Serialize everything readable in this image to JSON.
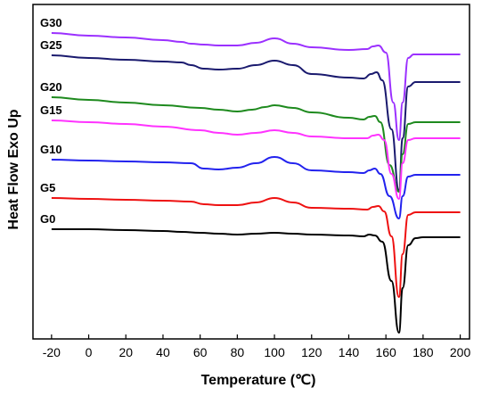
{
  "chart_data": {
    "type": "line",
    "xlabel": "Temperature (℃)",
    "ylabel": "Heat Flow Exo Up",
    "xlim": [
      -30,
      205
    ],
    "xticks": [
      -20,
      0,
      20,
      40,
      60,
      80,
      100,
      120,
      140,
      160,
      180,
      200
    ],
    "yticks_shown": false,
    "grid": false,
    "colors": {
      "G30": "#9b30ff",
      "G25": "#1a1a6e",
      "G20": "#1e8a1e",
      "G15": "#ff33ff",
      "G10": "#2222ee",
      "G5": "#ee1111",
      "G0": "#000000"
    },
    "series": [
      {
        "name": "G30",
        "color": "#9b30ff",
        "points": [
          [
            -20,
            32
          ],
          [
            0,
            35
          ],
          [
            20,
            37
          ],
          [
            40,
            40
          ],
          [
            50,
            42
          ],
          [
            55,
            44
          ],
          [
            62,
            45
          ],
          [
            70,
            46
          ],
          [
            80,
            46
          ],
          [
            90,
            43
          ],
          [
            100,
            38
          ],
          [
            110,
            44
          ],
          [
            120,
            48
          ],
          [
            140,
            51
          ],
          [
            150,
            50
          ],
          [
            153,
            47
          ],
          [
            156,
            46
          ],
          [
            160,
            54
          ],
          [
            164,
            110
          ],
          [
            167,
            152
          ],
          [
            169,
            110
          ],
          [
            172,
            60
          ],
          [
            175,
            56
          ],
          [
            180,
            56
          ],
          [
            200,
            56
          ]
        ]
      },
      {
        "name": "G25",
        "color": "#1a1a6e",
        "points": [
          [
            -20,
            57
          ],
          [
            0,
            60
          ],
          [
            20,
            62
          ],
          [
            40,
            64
          ],
          [
            50,
            65
          ],
          [
            55,
            68
          ],
          [
            62,
            72
          ],
          [
            70,
            73
          ],
          [
            80,
            72
          ],
          [
            90,
            68
          ],
          [
            100,
            63
          ],
          [
            110,
            68
          ],
          [
            120,
            78
          ],
          [
            140,
            82
          ],
          [
            148,
            83
          ],
          [
            152,
            78
          ],
          [
            155,
            76
          ],
          [
            158,
            85
          ],
          [
            163,
            140
          ],
          [
            167,
            208
          ],
          [
            169,
            150
          ],
          [
            172,
            92
          ],
          [
            176,
            87
          ],
          [
            180,
            87
          ],
          [
            200,
            87
          ]
        ]
      },
      {
        "name": "G20",
        "color": "#1e8a1e",
        "points": [
          [
            -20,
            104
          ],
          [
            0,
            107
          ],
          [
            20,
            110
          ],
          [
            40,
            113
          ],
          [
            60,
            116
          ],
          [
            70,
            118
          ],
          [
            80,
            120
          ],
          [
            88,
            118
          ],
          [
            95,
            115
          ],
          [
            100,
            113
          ],
          [
            110,
            116
          ],
          [
            120,
            121
          ],
          [
            140,
            127
          ],
          [
            148,
            129
          ],
          [
            151,
            126
          ],
          [
            154,
            125
          ],
          [
            157,
            132
          ],
          [
            162,
            180
          ],
          [
            167,
            210
          ],
          [
            169,
            168
          ],
          [
            172,
            134
          ],
          [
            176,
            132
          ],
          [
            180,
            132
          ],
          [
            200,
            132
          ]
        ]
      },
      {
        "name": "G15",
        "color": "#ff33ff",
        "points": [
          [
            -20,
            130
          ],
          [
            0,
            132
          ],
          [
            20,
            134
          ],
          [
            40,
            137
          ],
          [
            60,
            141
          ],
          [
            70,
            144
          ],
          [
            80,
            146
          ],
          [
            90,
            144
          ],
          [
            100,
            141
          ],
          [
            110,
            144
          ],
          [
            120,
            148
          ],
          [
            140,
            150
          ],
          [
            150,
            150
          ],
          [
            153,
            147
          ],
          [
            156,
            146
          ],
          [
            159,
            152
          ],
          [
            163,
            190
          ],
          [
            167,
            218
          ],
          [
            169,
            178
          ],
          [
            172,
            152
          ],
          [
            176,
            150
          ],
          [
            180,
            150
          ],
          [
            200,
            150
          ]
        ]
      },
      {
        "name": "G10",
        "color": "#2222ee",
        "points": [
          [
            -20,
            174
          ],
          [
            0,
            175
          ],
          [
            20,
            176
          ],
          [
            40,
            177
          ],
          [
            55,
            178
          ],
          [
            62,
            184
          ],
          [
            70,
            185
          ],
          [
            80,
            183
          ],
          [
            90,
            178
          ],
          [
            100,
            171
          ],
          [
            110,
            178
          ],
          [
            120,
            186
          ],
          [
            140,
            188
          ],
          [
            148,
            189
          ],
          [
            151,
            186
          ],
          [
            154,
            184
          ],
          [
            157,
            190
          ],
          [
            162,
            215
          ],
          [
            167,
            240
          ],
          [
            169,
            215
          ],
          [
            172,
            193
          ],
          [
            176,
            191
          ],
          [
            180,
            191
          ],
          [
            200,
            191
          ]
        ]
      },
      {
        "name": "G5",
        "color": "#ee1111",
        "points": [
          [
            -20,
            217
          ],
          [
            0,
            218
          ],
          [
            20,
            219
          ],
          [
            40,
            220
          ],
          [
            55,
            221
          ],
          [
            62,
            224
          ],
          [
            70,
            225
          ],
          [
            80,
            225
          ],
          [
            90,
            222
          ],
          [
            100,
            217
          ],
          [
            110,
            222
          ],
          [
            120,
            228
          ],
          [
            140,
            229
          ],
          [
            150,
            230
          ],
          [
            153,
            227
          ],
          [
            156,
            226
          ],
          [
            159,
            232
          ],
          [
            163,
            260
          ],
          [
            167,
            328
          ],
          [
            169,
            280
          ],
          [
            172,
            236
          ],
          [
            176,
            233
          ],
          [
            180,
            233
          ],
          [
            200,
            233
          ]
        ]
      },
      {
        "name": "G0",
        "color": "#000000",
        "points": [
          [
            -20,
            252
          ],
          [
            0,
            252
          ],
          [
            20,
            253
          ],
          [
            40,
            254
          ],
          [
            50,
            255
          ],
          [
            60,
            256
          ],
          [
            70,
            257
          ],
          [
            80,
            258
          ],
          [
            90,
            257
          ],
          [
            100,
            256
          ],
          [
            110,
            257
          ],
          [
            120,
            258
          ],
          [
            140,
            259
          ],
          [
            148,
            260
          ],
          [
            151,
            258
          ],
          [
            154,
            259
          ],
          [
            158,
            266
          ],
          [
            163,
            310
          ],
          [
            167,
            368
          ],
          [
            169,
            318
          ],
          [
            172,
            270
          ],
          [
            176,
            262
          ],
          [
            180,
            261
          ],
          [
            200,
            261
          ]
        ]
      }
    ]
  }
}
